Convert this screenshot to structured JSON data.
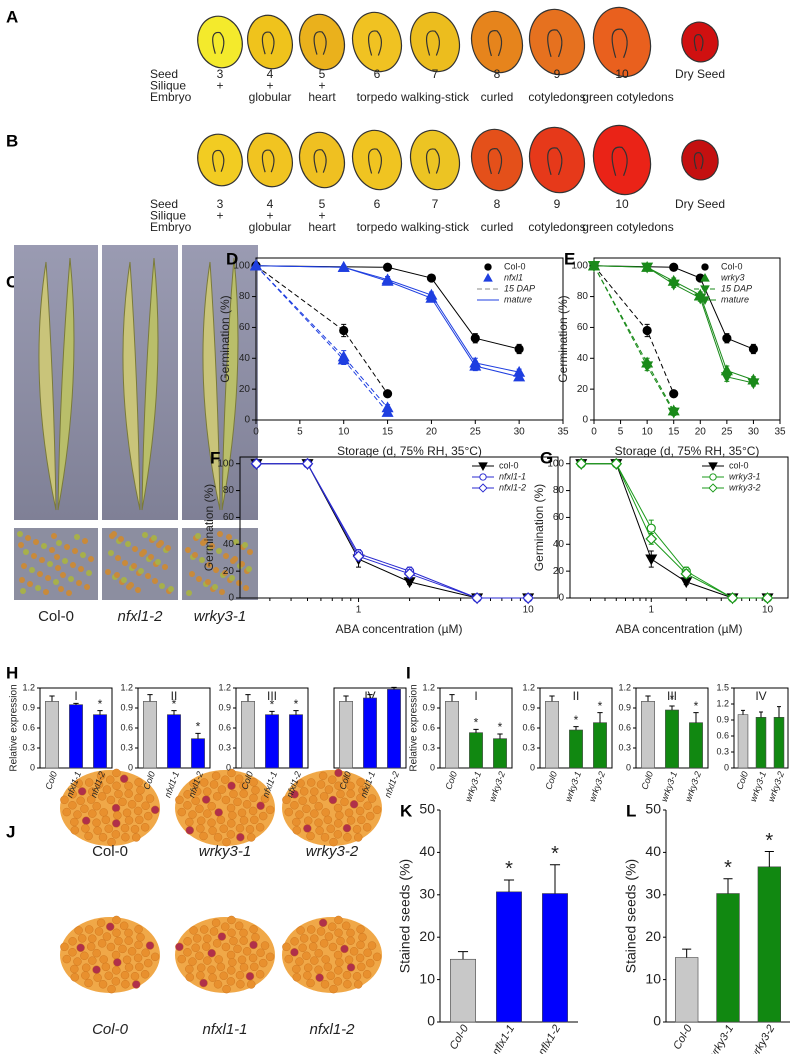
{
  "seed_panels": [
    {
      "letter": "A",
      "row_labels": [
        "Seed",
        "Silique",
        "Embryo"
      ],
      "seeds": [
        3,
        4,
        5,
        6,
        7,
        8,
        9,
        10,
        "Dry Seed"
      ],
      "silique": [
        "+",
        "+",
        "+"
      ],
      "embryo": [
        "globular",
        "heart",
        "torpedo",
        "walking-stick",
        "curled",
        "cotyledons",
        "green cotyledons"
      ]
    },
    {
      "letter": "B",
      "row_labels": [
        "Seed",
        "Silique",
        "Embryo"
      ],
      "seeds": [
        3,
        4,
        5,
        6,
        7,
        8,
        9,
        10,
        "Dry Seed"
      ],
      "silique": [
        "+",
        "+",
        "+"
      ],
      "embryo": [
        "globular",
        "heart",
        "torpedo",
        "walking-stick",
        "curled",
        "cotyledons",
        "green cotyledons"
      ]
    }
  ],
  "photos_C": {
    "letter": "C",
    "labels": [
      "Col-0",
      "nfxl1-2",
      "wrky3-1"
    ]
  },
  "photos_J": {
    "letter": "J",
    "labels": [
      [
        "Col-0",
        "wrky3-1",
        "wrky3-2"
      ],
      [
        "Col-0",
        "nfxl1-1",
        "nfxl1-2"
      ]
    ]
  },
  "chart_data": [
    {
      "type": "line",
      "letter": "D",
      "xlabel": "Storage (d, 75% RH, 35°C)",
      "ylabel": "Germination (%)",
      "xlim": [
        0,
        35
      ],
      "xticks": [
        0,
        5,
        10,
        15,
        20,
        25,
        30,
        35
      ],
      "ylim": [
        0,
        105
      ],
      "yticks": [
        0,
        20,
        40,
        60,
        80,
        100
      ],
      "legend": "upper right",
      "legend_entries": [
        {
          "label": "Col-0",
          "color": "#000000",
          "marker": "circle"
        },
        {
          "label": "nfxl1",
          "color": "#1f3fe0",
          "marker": "triangle"
        },
        {
          "label": "15 DAP",
          "color": "#888888",
          "dash": true
        },
        {
          "label": "mature",
          "color": "#1f3fe0",
          "dash": false
        }
      ],
      "series": [
        {
          "color": "#000000",
          "marker": "circle",
          "dash": true,
          "x": [
            0,
            10,
            15
          ],
          "values": [
            100,
            58,
            17
          ],
          "errors": [
            0,
            4,
            2
          ]
        },
        {
          "color": "#000000",
          "marker": "circle",
          "dash": false,
          "x": [
            0,
            15,
            20,
            25,
            30
          ],
          "values": [
            100,
            99,
            92,
            53,
            46
          ],
          "errors": [
            0,
            1,
            1,
            3,
            3
          ]
        },
        {
          "color": "#1f3fe0",
          "marker": "triangle",
          "dash": true,
          "x": [
            0,
            10,
            15
          ],
          "values": [
            100,
            41,
            8
          ],
          "errors": [
            0,
            4,
            2
          ]
        },
        {
          "color": "#1f3fe0",
          "marker": "triangle",
          "dash": true,
          "x": [
            0,
            10,
            15
          ],
          "values": [
            100,
            39,
            5
          ],
          "errors": [
            0,
            3,
            2
          ]
        },
        {
          "color": "#1f3fe0",
          "marker": "triangle",
          "dash": false,
          "x": [
            0,
            10,
            15,
            20,
            25,
            30
          ],
          "values": [
            100,
            99,
            91,
            81,
            37,
            31
          ],
          "errors": [
            0,
            1,
            2,
            2,
            3,
            2
          ]
        },
        {
          "color": "#1f3fe0",
          "marker": "triangle",
          "dash": false,
          "x": [
            0,
            10,
            15,
            20,
            25,
            30
          ],
          "values": [
            100,
            99,
            90,
            79,
            35,
            28
          ],
          "errors": [
            0,
            1,
            2,
            2,
            3,
            2
          ]
        }
      ]
    },
    {
      "type": "line",
      "letter": "E",
      "xlabel": "Storage (d, 75% RH, 35°C)",
      "ylabel": "Germination (%)",
      "xlim": [
        0,
        35
      ],
      "xticks": [
        0,
        5,
        10,
        15,
        20,
        25,
        30,
        35
      ],
      "ylim": [
        0,
        105
      ],
      "yticks": [
        0,
        20,
        40,
        60,
        80,
        100
      ],
      "legend": "upper right",
      "legend_entries": [
        {
          "label": "Col-0",
          "color": "#000000",
          "marker": "circle"
        },
        {
          "label": "wrky3",
          "color": "#1a8a1a",
          "marker": "triangle"
        },
        {
          "label": "15 DAP",
          "color": "#1a8a1a",
          "marker": "triangle-down",
          "dash": true
        },
        {
          "label": "mature",
          "color": "#1a8a1a",
          "marker": "triangle-down",
          "dash": false
        }
      ],
      "series": [
        {
          "color": "#000000",
          "marker": "circle",
          "dash": true,
          "x": [
            0,
            10,
            15
          ],
          "values": [
            100,
            58,
            17
          ],
          "errors": [
            0,
            4,
            2
          ]
        },
        {
          "color": "#000000",
          "marker": "circle",
          "dash": false,
          "x": [
            0,
            15,
            20,
            25,
            30
          ],
          "values": [
            100,
            99,
            92,
            53,
            46
          ],
          "errors": [
            0,
            1,
            1,
            3,
            3
          ]
        },
        {
          "color": "#1a8a1a",
          "marker": "triangle",
          "dash": true,
          "x": [
            0,
            10,
            15
          ],
          "values": [
            100,
            37,
            6
          ],
          "errors": [
            0,
            3,
            2
          ]
        },
        {
          "color": "#1a8a1a",
          "marker": "triangle-down",
          "dash": true,
          "x": [
            0,
            10,
            15
          ],
          "values": [
            100,
            35,
            5
          ],
          "errors": [
            0,
            3,
            2
          ]
        },
        {
          "color": "#1a8a1a",
          "marker": "triangle",
          "dash": false,
          "x": [
            0,
            10,
            15,
            20,
            25,
            30
          ],
          "values": [
            100,
            99,
            90,
            81,
            32,
            26
          ],
          "errors": [
            0,
            1,
            2,
            2,
            3,
            2
          ]
        },
        {
          "color": "#1a8a1a",
          "marker": "triangle-down",
          "dash": false,
          "x": [
            0,
            10,
            15,
            20,
            25,
            30
          ],
          "values": [
            100,
            99,
            88,
            79,
            28,
            24
          ],
          "errors": [
            0,
            1,
            2,
            2,
            3,
            2
          ]
        }
      ]
    },
    {
      "type": "line",
      "letter": "F",
      "log_x": true,
      "xlabel": "ABA concentration (µM)",
      "ylabel": "Germination (%)",
      "xlim": [
        0.2,
        15
      ],
      "xticks": [
        1,
        10
      ],
      "xminorticks": [
        0.3,
        0.4,
        0.5,
        0.6,
        0.7,
        0.8,
        0.9,
        2,
        3,
        4,
        5,
        6,
        7,
        8,
        9
      ],
      "ylim": [
        0,
        105
      ],
      "yticks": [
        0,
        20,
        40,
        60,
        80,
        100
      ],
      "legend": "upper right",
      "x": [
        0.25,
        0.5,
        1,
        2,
        5,
        10
      ],
      "legend_entries": [
        {
          "label": "col-0",
          "color": "#000000",
          "marker": "triangle-down",
          "dash": false
        },
        {
          "label": "nfxl1-1",
          "color": "#2a2ad0",
          "marker": "circle-open",
          "dash": false
        },
        {
          "label": "nfxl1-2",
          "color": "#2a2ad0",
          "marker": "diamond-open",
          "dash": false
        }
      ],
      "series": [
        {
          "color": "#000000",
          "marker": "triangle-down",
          "dash": false,
          "values": [
            100,
            100,
            29,
            12,
            0,
            0
          ],
          "errors": [
            0,
            0,
            6,
            2,
            0,
            0
          ]
        },
        {
          "color": "#2a2ad0",
          "marker": "circle-open",
          "dash": false,
          "values": [
            100,
            100,
            33,
            20,
            0,
            0
          ],
          "errors": [
            0,
            0,
            3,
            3,
            0,
            0
          ]
        },
        {
          "color": "#2a2ad0",
          "marker": "diamond-open",
          "dash": false,
          "values": [
            100,
            100,
            31,
            18,
            0,
            0
          ],
          "errors": [
            0,
            0,
            3,
            3,
            0,
            0
          ]
        }
      ]
    },
    {
      "type": "line",
      "letter": "G",
      "log_x": true,
      "xlabel": "ABA concentration (µM)",
      "ylabel": "Germination (%)",
      "xlim": [
        0.2,
        15
      ],
      "xticks": [
        1,
        10
      ],
      "xminorticks": [
        0.3,
        0.4,
        0.5,
        0.6,
        0.7,
        0.8,
        0.9,
        2,
        3,
        4,
        5,
        6,
        7,
        8,
        9
      ],
      "ylim": [
        0,
        105
      ],
      "yticks": [
        0,
        20,
        40,
        60,
        80,
        100
      ],
      "legend": "upper right",
      "x": [
        0.25,
        0.5,
        1,
        2,
        5,
        10
      ],
      "legend_entries": [
        {
          "label": "col-0",
          "color": "#000000",
          "marker": "triangle-down",
          "dash": false
        },
        {
          "label": "wrky3-1",
          "color": "#1a9a1a",
          "marker": "circle-open",
          "dash": false
        },
        {
          "label": "wrky3-2",
          "color": "#1a9a1a",
          "marker": "diamond-open",
          "dash": false
        }
      ],
      "series": [
        {
          "color": "#000000",
          "marker": "triangle-down",
          "dash": false,
          "values": [
            100,
            100,
            29,
            12,
            0,
            0
          ],
          "errors": [
            0,
            0,
            6,
            2,
            0,
            0
          ]
        },
        {
          "color": "#1a9a1a",
          "marker": "circle-open",
          "dash": false,
          "values": [
            100,
            100,
            52,
            20,
            0,
            0
          ],
          "errors": [
            0,
            0,
            6,
            3,
            0,
            0
          ]
        },
        {
          "color": "#1a9a1a",
          "marker": "diamond-open",
          "dash": false,
          "values": [
            100,
            100,
            44,
            18,
            0,
            0
          ],
          "errors": [
            0,
            0,
            4,
            3,
            0,
            0
          ]
        }
      ]
    },
    {
      "type": "bar",
      "letter": "H",
      "title": "I",
      "ylabel": "Relative expression",
      "box": true,
      "categories": [
        "Col0",
        "nfxl1-1",
        "nfxl1-2"
      ],
      "colors": [
        "#c8c8c8",
        "#0000ff",
        "#0000ff"
      ],
      "values": [
        1.0,
        0.95,
        0.8
      ],
      "errors": [
        0.08,
        0.02,
        0.06
      ],
      "significance": [
        null,
        null,
        "*"
      ],
      "ylim": [
        0,
        1.2
      ],
      "yticks": [
        0,
        0.3,
        0.6,
        0.9,
        1.2
      ]
    },
    {
      "type": "bar",
      "title": "II",
      "box": true,
      "categories": [
        "Col0",
        "nfxl1-1",
        "nfxl1-2"
      ],
      "colors": [
        "#c8c8c8",
        "#0000ff",
        "#0000ff"
      ],
      "values": [
        1.0,
        0.8,
        0.44
      ],
      "errors": [
        0.1,
        0.06,
        0.08
      ],
      "significance": [
        null,
        "*",
        "*"
      ],
      "ylim": [
        0,
        1.2
      ],
      "yticks": [
        0,
        0.3,
        0.6,
        0.9,
        1.2
      ]
    },
    {
      "type": "bar",
      "title": "III",
      "box": true,
      "categories": [
        "Col0",
        "nfxl1-1",
        "nfxl1-2"
      ],
      "colors": [
        "#c8c8c8",
        "#0000ff",
        "#0000ff"
      ],
      "values": [
        1.0,
        0.8,
        0.8
      ],
      "errors": [
        0.1,
        0.05,
        0.06
      ],
      "significance": [
        null,
        "*",
        "*"
      ],
      "ylim": [
        0,
        1.2
      ],
      "yticks": [
        0,
        0.3,
        0.6,
        0.9,
        1.2
      ]
    },
    {
      "type": "bar",
      "title": "IV",
      "box": true,
      "categories": [
        "Col0",
        "nfxl1-1",
        "nfxl1-2"
      ],
      "colors": [
        "#c8c8c8",
        "#0000ff",
        "#0000ff"
      ],
      "values": [
        1.0,
        1.05,
        1.18
      ],
      "errors": [
        0.08,
        0.05,
        0.03
      ],
      "significance": [
        null,
        null,
        null
      ],
      "ylim": [
        0,
        1.2
      ]
    },
    {
      "type": "bar",
      "letter": "I",
      "title": "I",
      "ylabel": "Relative expression",
      "box": true,
      "categories": [
        "Col0",
        "wrky3-1",
        "wrky3-2"
      ],
      "colors": [
        "#c8c8c8",
        "#118811",
        "#118811"
      ],
      "values": [
        1.0,
        0.53,
        0.44
      ],
      "errors": [
        0.1,
        0.05,
        0.07
      ],
      "significance": [
        null,
        "*",
        "*"
      ],
      "ylim": [
        0,
        1.2
      ],
      "yticks": [
        0,
        0.3,
        0.6,
        0.9,
        1.2
      ]
    },
    {
      "type": "bar",
      "title": "II",
      "box": true,
      "categories": [
        "Col0",
        "wrky3-1",
        "wrky3-2"
      ],
      "colors": [
        "#c8c8c8",
        "#118811",
        "#118811"
      ],
      "values": [
        1.0,
        0.57,
        0.68
      ],
      "errors": [
        0.08,
        0.05,
        0.15
      ],
      "significance": [
        null,
        "*",
        "*"
      ],
      "ylim": [
        0,
        1.2
      ],
      "yticks": [
        0,
        0.3,
        0.6,
        0.9,
        1.2
      ]
    },
    {
      "type": "bar",
      "title": "III",
      "box": true,
      "categories": [
        "Col0",
        "wrky3-1",
        "wrky3-2"
      ],
      "colors": [
        "#c8c8c8",
        "#118811",
        "#118811"
      ],
      "values": [
        1.0,
        0.87,
        0.68
      ],
      "errors": [
        0.08,
        0.06,
        0.15
      ],
      "significance": [
        null,
        "*",
        "*"
      ],
      "ylim": [
        0,
        1.2
      ],
      "yticks": [
        0,
        0.3,
        0.6,
        0.9,
        1.2
      ]
    },
    {
      "type": "bar",
      "title": "IV",
      "box": true,
      "categories": [
        "Col0",
        "wrky3-1",
        "wrky3-2"
      ],
      "colors": [
        "#c8c8c8",
        "#118811",
        "#118811"
      ],
      "values": [
        1.0,
        0.95,
        0.95
      ],
      "errors": [
        0.08,
        0.1,
        0.2
      ],
      "significance": [
        null,
        null,
        null
      ],
      "ylim": [
        0,
        1.5
      ],
      "yticks": [
        0,
        0.3,
        0.6,
        0.9,
        1.2,
        1.5
      ]
    },
    {
      "type": "bar",
      "letter": "K",
      "ylabel": "Stained seeds (%)",
      "box": false,
      "categories": [
        "Col-0",
        "nflx1-1",
        "nflx1-2"
      ],
      "colors": [
        "#c8c8c8",
        "#0000ff",
        "#0000ff"
      ],
      "values": [
        14.8,
        30.7,
        30.3
      ],
      "errors": [
        1.8,
        2.8,
        6.8
      ],
      "significance": [
        null,
        "*",
        "*"
      ],
      "ylim": [
        0,
        50
      ],
      "yticks": [
        0,
        10,
        20,
        30,
        40,
        50
      ]
    },
    {
      "type": "bar",
      "letter": "L",
      "ylabel": "Stained seeds (%)",
      "box": false,
      "categories": [
        "Col-0",
        "wrky3-1",
        "wrky3-2"
      ],
      "colors": [
        "#c8c8c8",
        "#118811",
        "#118811"
      ],
      "values": [
        15.2,
        30.3,
        36.6
      ],
      "errors": [
        2.0,
        3.5,
        3.6
      ],
      "significance": [
        null,
        "*",
        "*"
      ],
      "ylim": [
        0,
        50
      ],
      "yticks": [
        0,
        10,
        20,
        30,
        40,
        50
      ]
    }
  ]
}
